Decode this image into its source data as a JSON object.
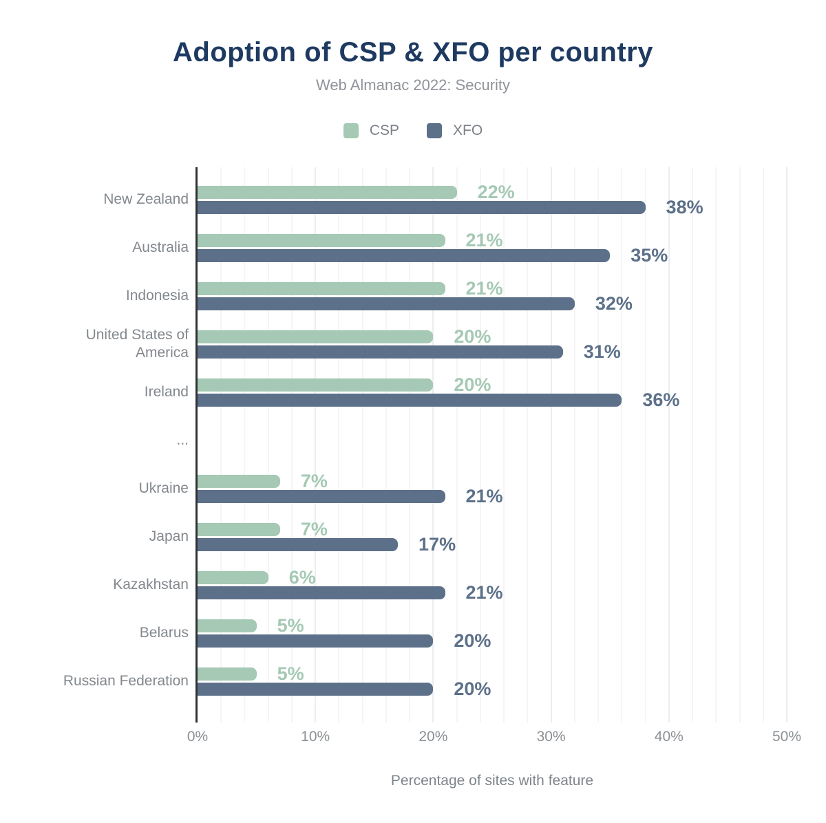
{
  "title": "Adoption of CSP & XFO per country",
  "subtitle": "Web Almanac 2022: Security",
  "legend": [
    {
      "label": "CSP",
      "color": "#a5c9b4"
    },
    {
      "label": "XFO",
      "color": "#5d7089"
    }
  ],
  "colors": {
    "title": "#1e3a61",
    "subtitle": "#8e9399",
    "axis_line": "#2f3336",
    "category_label": "#83888d",
    "tick_label": "#8b9094",
    "grid_minor": "#f4f5f6",
    "grid_major": "#ebedee",
    "ellipsis": "#83888d"
  },
  "chart_data": {
    "type": "bar",
    "orientation": "horizontal",
    "title": "Adoption of CSP & XFO per country",
    "subtitle": "Web Almanac 2022: Security",
    "categories": [
      "New Zealand",
      "Australia",
      "Indonesia",
      "United States of America",
      "Ireland",
      "...",
      "Ukraine",
      "Japan",
      "Kazakhstan",
      "Belarus",
      "Russian Federation"
    ],
    "series": [
      {
        "name": "CSP",
        "color": "#a5c9b4",
        "values": [
          22,
          21,
          21,
          20,
          20,
          null,
          7,
          7,
          6,
          5,
          5
        ],
        "labels": [
          "22%",
          "21%",
          "21%",
          "20%",
          "20%",
          "",
          "7%",
          "7%",
          "6%",
          "5%",
          "5%"
        ]
      },
      {
        "name": "XFO",
        "color": "#5d7089",
        "values": [
          38,
          35,
          32,
          31,
          36,
          null,
          21,
          17,
          21,
          20,
          20
        ],
        "labels": [
          "38%",
          "35%",
          "32%",
          "31%",
          "36%",
          "",
          "21%",
          "17%",
          "21%",
          "20%",
          "20%"
        ]
      }
    ],
    "xlabel": "Percentage of sites with feature",
    "xlim": [
      0,
      50
    ],
    "xticks": [
      "0%",
      "10%",
      "20%",
      "30%",
      "40%",
      "50%"
    ],
    "grid": "vertical minor every 2%, major every 10%",
    "legend_position": "top"
  }
}
